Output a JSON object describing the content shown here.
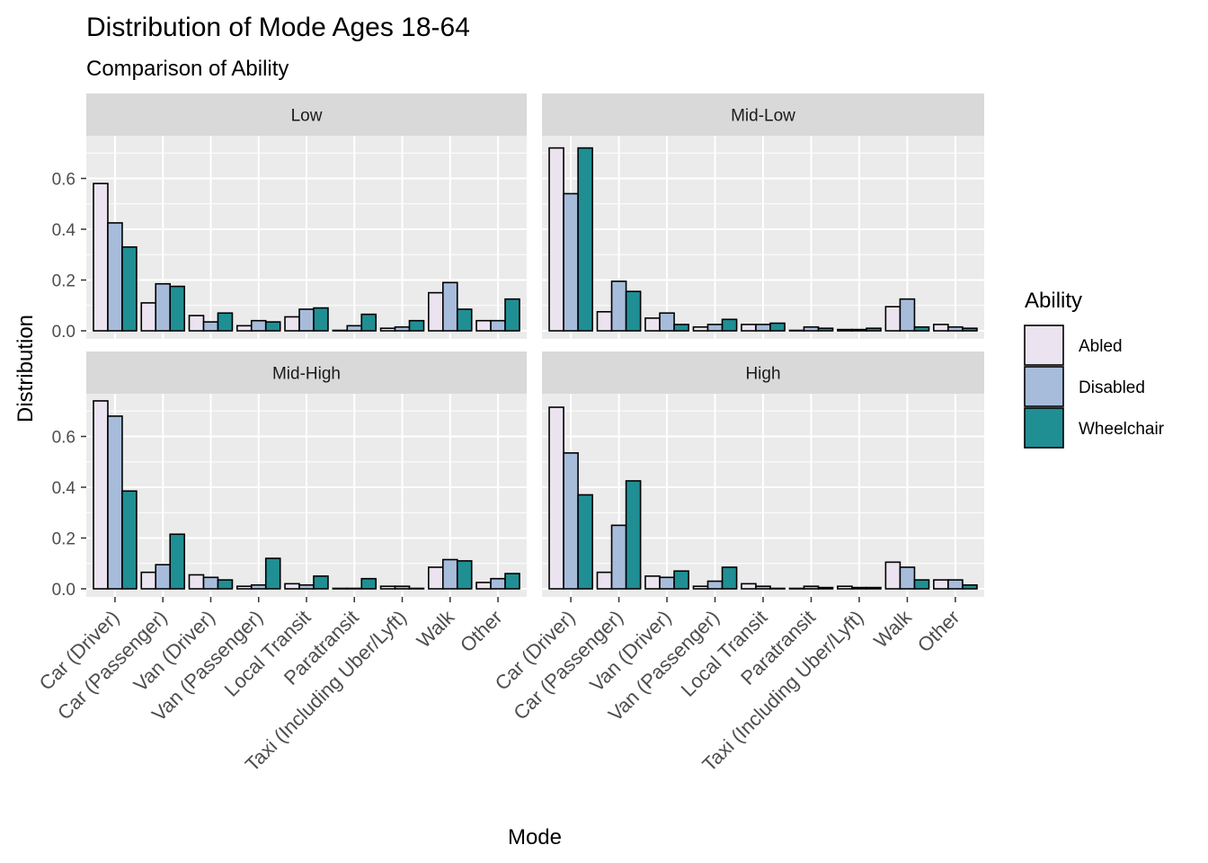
{
  "chart_data": {
    "type": "bar",
    "title": "Distribution of Mode Ages 18-64",
    "subtitle": "Comparison of Ability",
    "xlabel": "Mode",
    "ylabel": "Distribution",
    "ylim": [
      0,
      0.75
    ],
    "yticks": [
      0.0,
      0.2,
      0.4,
      0.6
    ],
    "ytick_labels": [
      "0.0",
      "0.2",
      "0.4",
      "0.6"
    ],
    "grid": true,
    "legend": {
      "title": "Ability",
      "placement": "right"
    },
    "categories": [
      "Car (Driver)",
      "Car (Passenger)",
      "Van (Driver)",
      "Van (Passenger)",
      "Local Transit",
      "Paratransit",
      "Taxi (Including Uber/Lyft)",
      "Walk",
      "Other"
    ],
    "series_names": [
      "Abled",
      "Disabled",
      "Wheelchair"
    ],
    "colors": {
      "Abled": "#ebe3ef",
      "Disabled": "#a7bcdb",
      "Wheelchair": "#1f8f94"
    },
    "panels": [
      {
        "name": "Low",
        "series": [
          {
            "name": "Abled",
            "values": [
              0.58,
              0.11,
              0.06,
              0.02,
              0.055,
              0.0,
              0.01,
              0.15,
              0.04
            ]
          },
          {
            "name": "Disabled",
            "values": [
              0.425,
              0.185,
              0.035,
              0.04,
              0.085,
              0.02,
              0.015,
              0.19,
              0.04
            ]
          },
          {
            "name": "Wheelchair",
            "values": [
              0.33,
              0.175,
              0.07,
              0.035,
              0.09,
              0.065,
              0.04,
              0.085,
              0.125
            ]
          }
        ]
      },
      {
        "name": "Mid-Low",
        "series": [
          {
            "name": "Abled",
            "values": [
              0.72,
              0.075,
              0.05,
              0.015,
              0.025,
              0.0,
              0.005,
              0.095,
              0.025
            ]
          },
          {
            "name": "Disabled",
            "values": [
              0.54,
              0.195,
              0.07,
              0.025,
              0.025,
              0.015,
              0.005,
              0.125,
              0.015
            ]
          },
          {
            "name": "Wheelchair",
            "values": [
              0.72,
              0.155,
              0.025,
              0.045,
              0.03,
              0.01,
              0.01,
              0.015,
              0.01
            ]
          }
        ]
      },
      {
        "name": "Mid-High",
        "series": [
          {
            "name": "Abled",
            "values": [
              0.74,
              0.065,
              0.055,
              0.01,
              0.02,
              0.0,
              0.01,
              0.085,
              0.025
            ]
          },
          {
            "name": "Disabled",
            "values": [
              0.68,
              0.095,
              0.045,
              0.015,
              0.015,
              0.0,
              0.01,
              0.115,
              0.04
            ]
          },
          {
            "name": "Wheelchair",
            "values": [
              0.385,
              0.215,
              0.035,
              0.12,
              0.05,
              0.04,
              0.0,
              0.11,
              0.06
            ]
          }
        ]
      },
      {
        "name": "High",
        "series": [
          {
            "name": "Abled",
            "values": [
              0.715,
              0.065,
              0.05,
              0.01,
              0.02,
              0.0,
              0.01,
              0.105,
              0.035
            ]
          },
          {
            "name": "Disabled",
            "values": [
              0.535,
              0.25,
              0.045,
              0.03,
              0.01,
              0.01,
              0.005,
              0.085,
              0.035
            ]
          },
          {
            "name": "Wheelchair",
            "values": [
              0.37,
              0.425,
              0.07,
              0.085,
              0.0,
              0.005,
              0.005,
              0.035,
              0.015
            ]
          }
        ]
      }
    ]
  }
}
